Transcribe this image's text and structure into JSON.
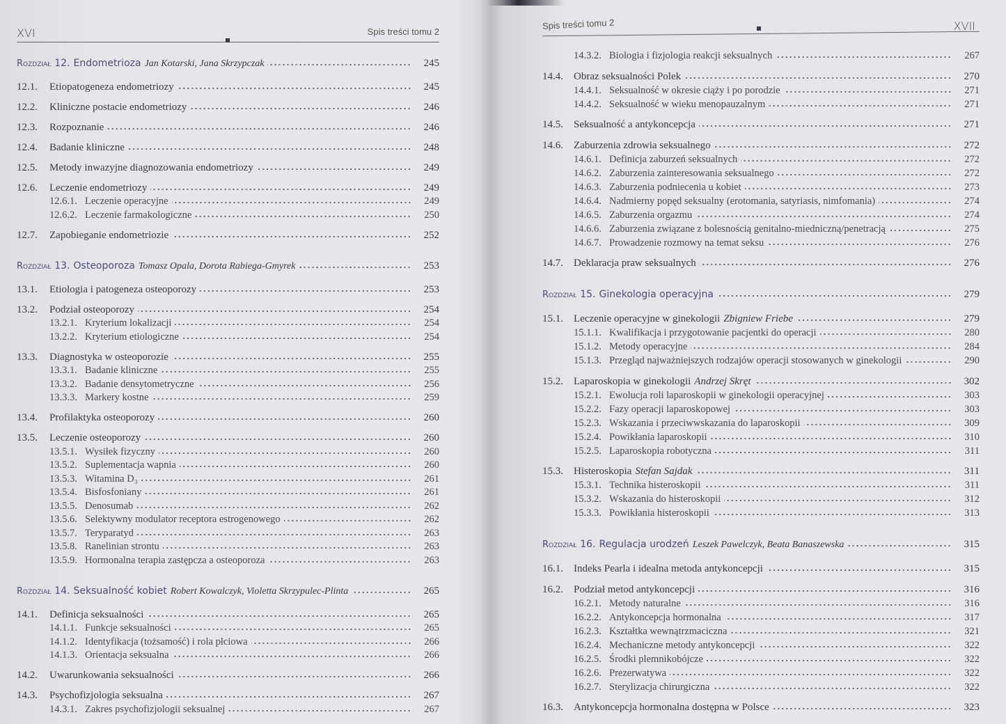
{
  "left_page": {
    "folio": "XVI",
    "running_head": "Spis treści tomu 2",
    "entries": [
      {
        "t": "c",
        "label": "Rozdział",
        "num": "12.",
        "title": "Endometrioza",
        "author": "Jan Kotarski, Jana Skrzypczak",
        "page": "245"
      },
      {
        "t": "s",
        "num": "12.1.",
        "title": "Etiopatogeneza endometriozy",
        "page": "245"
      },
      {
        "t": "s",
        "num": "12.2.",
        "title": "Kliniczne postacie endometriozy",
        "page": "246"
      },
      {
        "t": "s",
        "num": "12.3.",
        "title": "Rozpoznanie",
        "page": "246"
      },
      {
        "t": "s",
        "num": "12.4.",
        "title": "Badanie kliniczne",
        "page": "248"
      },
      {
        "t": "s",
        "num": "12.5.",
        "title": "Metody inwazyjne diagnozowania endometriozy",
        "page": "249"
      },
      {
        "t": "s",
        "num": "12.6.",
        "title": "Leczenie endometriozy",
        "page": "249"
      },
      {
        "t": "u",
        "num": "12.6.1.",
        "title": "Leczenie operacyjne",
        "page": "249"
      },
      {
        "t": "u",
        "num": "12.6.2.",
        "title": "Leczenie farmakologiczne",
        "page": "250"
      },
      {
        "t": "s",
        "num": "12.7.",
        "title": "Zapobieganie endometriozie",
        "page": "252"
      },
      {
        "t": "c",
        "label": "Rozdział",
        "num": "13.",
        "title": "Osteoporoza",
        "author": "Tomasz Opala, Dorota Rabiega-Gmyrek",
        "page": "253"
      },
      {
        "t": "s",
        "num": "13.1.",
        "title": "Etiologia i patogeneza osteoporozy",
        "page": "253"
      },
      {
        "t": "s",
        "num": "13.2.",
        "title": "Podział osteoporozy",
        "page": "254"
      },
      {
        "t": "u",
        "num": "13.2.1.",
        "title": "Kryterium lokalizacji",
        "page": "254"
      },
      {
        "t": "u",
        "num": "13.2.2.",
        "title": "Kryterium etiologiczne",
        "page": "254"
      },
      {
        "t": "s",
        "num": "13.3.",
        "title": "Diagnostyka w osteoporozie",
        "page": "255"
      },
      {
        "t": "u",
        "num": "13.3.1.",
        "title": "Badanie kliniczne",
        "page": "255"
      },
      {
        "t": "u",
        "num": "13.3.2.",
        "title": "Badanie densytometryczne",
        "page": "256"
      },
      {
        "t": "u",
        "num": "13.3.3.",
        "title": "Markery kostne",
        "page": "259"
      },
      {
        "t": "s",
        "num": "13.4.",
        "title": "Profilaktyka osteoporozy",
        "page": "260"
      },
      {
        "t": "s",
        "num": "13.5.",
        "title": "Leczenie osteoporozy",
        "page": "260"
      },
      {
        "t": "u",
        "num": "13.5.1.",
        "title": "Wysiłek fizyczny",
        "page": "260"
      },
      {
        "t": "u",
        "num": "13.5.2.",
        "title": "Suplementacja wapnia",
        "page": "260"
      },
      {
        "t": "u",
        "num": "13.5.3.",
        "title": "Witamina D₃",
        "page": "261"
      },
      {
        "t": "u",
        "num": "13.5.4.",
        "title": "Bisfosfoniany",
        "page": "261"
      },
      {
        "t": "u",
        "num": "13.5.5.",
        "title": "Denosumab",
        "page": "262"
      },
      {
        "t": "u",
        "num": "13.5.6.",
        "title": "Selektywny modulator receptora estrogenowego",
        "page": "262"
      },
      {
        "t": "u",
        "num": "13.5.7.",
        "title": "Teryparatyd",
        "page": "263"
      },
      {
        "t": "u",
        "num": "13.5.8.",
        "title": "Ranelinian strontu",
        "page": "263"
      },
      {
        "t": "u",
        "num": "13.5.9.",
        "title": "Hormonalna terapia zastępcza a osteoporoza",
        "page": "263"
      },
      {
        "t": "c",
        "label": "Rozdział",
        "num": "14.",
        "title": "Seksualność kobiet",
        "author": "Robert Kowalczyk, Violetta Skrzypulec-Plinta",
        "page": "265"
      },
      {
        "t": "s",
        "num": "14.1.",
        "title": "Definicja seksualności",
        "page": "265"
      },
      {
        "t": "u",
        "num": "14.1.1.",
        "title": "Funkcje seksualności",
        "page": "265"
      },
      {
        "t": "u",
        "num": "14.1.2.",
        "title": "Identyfikacja (tożsamość) i rola płciowa",
        "page": "266"
      },
      {
        "t": "u",
        "num": "14.1.3.",
        "title": "Orientacja seksualna",
        "page": "266"
      },
      {
        "t": "s",
        "num": "14.2.",
        "title": "Uwarunkowania seksualności",
        "page": "266"
      },
      {
        "t": "s",
        "num": "14.3.",
        "title": "Psychofizjologia seksualna",
        "page": "267"
      },
      {
        "t": "u",
        "num": "14.3.1.",
        "title": "Zakres psychofizjologii seksualnej",
        "page": "267"
      }
    ]
  },
  "right_page": {
    "folio": "XVII",
    "running_head": "Spis treści tomu 2",
    "entries": [
      {
        "t": "u",
        "num": "14.3.2.",
        "title": "Biologia i fizjologia reakcji seksualnych",
        "page": "267"
      },
      {
        "t": "s",
        "num": "14.4.",
        "title": "Obraz seksualności Polek",
        "page": "270"
      },
      {
        "t": "u",
        "num": "14.4.1.",
        "title": "Seksualność w okresie ciąży i po porodzie",
        "page": "271"
      },
      {
        "t": "u",
        "num": "14.4.2.",
        "title": "Seksualność w wieku menopauzalnym",
        "page": "271"
      },
      {
        "t": "s",
        "num": "14.5.",
        "title": "Seksualność a antykoncepcja",
        "page": "271"
      },
      {
        "t": "s",
        "num": "14.6.",
        "title": "Zaburzenia zdrowia seksualnego",
        "page": "272"
      },
      {
        "t": "u",
        "num": "14.6.1.",
        "title": "Definicja zaburzeń seksualnych",
        "page": "272"
      },
      {
        "t": "u",
        "num": "14.6.2.",
        "title": "Zaburzenia zainteresowania seksualnego",
        "page": "272"
      },
      {
        "t": "u",
        "num": "14.6.3.",
        "title": "Zaburzenia podniecenia u kobiet",
        "page": "273"
      },
      {
        "t": "u",
        "num": "14.6.4.",
        "title": "Nadmierny popęd seksualny (erotomania, satyriasis, nimfomania)",
        "page": "274"
      },
      {
        "t": "u",
        "num": "14.6.5.",
        "title": "Zaburzenia orgazmu",
        "page": "274"
      },
      {
        "t": "u",
        "num": "14.6.6.",
        "title": "Zaburzenia związane z bolesnością genitalno-miedniczną/penetracją",
        "page": "275"
      },
      {
        "t": "u",
        "num": "14.6.7.",
        "title": "Prowadzenie rozmowy na temat seksu",
        "page": "276"
      },
      {
        "t": "s",
        "num": "14.7.",
        "title": "Deklaracja praw seksualnych",
        "page": "276"
      },
      {
        "t": "c",
        "label": "Rozdział",
        "num": "15.",
        "title": "Ginekologia operacyjna",
        "author": "",
        "page": "279"
      },
      {
        "t": "s",
        "num": "15.1.",
        "title": "Leczenie operacyjne w ginekologii",
        "author": "Zbigniew Friebe",
        "page": "279"
      },
      {
        "t": "u",
        "num": "15.1.1.",
        "title": "Kwalifikacja i przygotowanie pacjentki do operacji",
        "page": "280"
      },
      {
        "t": "u",
        "num": "15.1.2.",
        "title": "Metody operacyjne",
        "page": "284"
      },
      {
        "t": "u",
        "num": "15.1.3.",
        "title": "Przegląd najważniejszych rodzajów operacji stosowanych w ginekologii",
        "page": "290"
      },
      {
        "t": "s",
        "num": "15.2.",
        "title": "Laparoskopia w ginekologii",
        "author": "Andrzej Skręt",
        "page": "302"
      },
      {
        "t": "u",
        "num": "15.2.1.",
        "title": "Ewolucja roli laparoskopii w ginekologii operacyjnej",
        "page": "303"
      },
      {
        "t": "u",
        "num": "15.2.2.",
        "title": "Fazy operacji laparoskopowej",
        "page": "303"
      },
      {
        "t": "u",
        "num": "15.2.3.",
        "title": "Wskazania i przeciwwskazania do laparoskopii",
        "page": "309"
      },
      {
        "t": "u",
        "num": "15.2.4.",
        "title": "Powikłania laparoskopii",
        "page": "310"
      },
      {
        "t": "u",
        "num": "15.2.5.",
        "title": "Laparoskopia robotyczna",
        "page": "311"
      },
      {
        "t": "s",
        "num": "15.3.",
        "title": "Histeroskopia",
        "author": "Stefan Sajdak",
        "page": "311"
      },
      {
        "t": "u",
        "num": "15.3.1.",
        "title": "Technika histeroskopii",
        "page": "311"
      },
      {
        "t": "u",
        "num": "15.3.2.",
        "title": "Wskazania do histeroskopii",
        "page": "312"
      },
      {
        "t": "u",
        "num": "15.3.3.",
        "title": "Powikłania histeroskopii",
        "page": "313"
      },
      {
        "t": "c",
        "label": "Rozdział",
        "num": "16.",
        "title": "Regulacja urodzeń",
        "author": "Leszek Pawelczyk, Beata Banaszewska",
        "page": "315"
      },
      {
        "t": "s",
        "num": "16.1.",
        "title": "Indeks Pearla i idealna metoda antykoncepcji",
        "page": "315"
      },
      {
        "t": "s",
        "num": "16.2.",
        "title": "Podział metod antykoncepcji",
        "page": "316"
      },
      {
        "t": "u",
        "num": "16.2.1.",
        "title": "Metody naturalne",
        "page": "316"
      },
      {
        "t": "u",
        "num": "16.2.2.",
        "title": "Antykoncepcja hormonalna",
        "page": "317"
      },
      {
        "t": "u",
        "num": "16.2.3.",
        "title": "Kształtka wewnątrzmaciczna",
        "page": "321"
      },
      {
        "t": "u",
        "num": "16.2.4.",
        "title": "Mechaniczne metody antykoncepcji",
        "page": "322"
      },
      {
        "t": "u",
        "num": "16.2.5.",
        "title": "Środki plemnikobójcze",
        "page": "322"
      },
      {
        "t": "u",
        "num": "16.2.6.",
        "title": "Prezerwatywa",
        "page": "322"
      },
      {
        "t": "u",
        "num": "16.2.7.",
        "title": "Sterylizacja chirurgiczna",
        "page": "322"
      },
      {
        "t": "s",
        "num": "16.3.",
        "title": "Antykoncepcja hormonalna dostępna w Polsce",
        "page": "323"
      }
    ]
  }
}
